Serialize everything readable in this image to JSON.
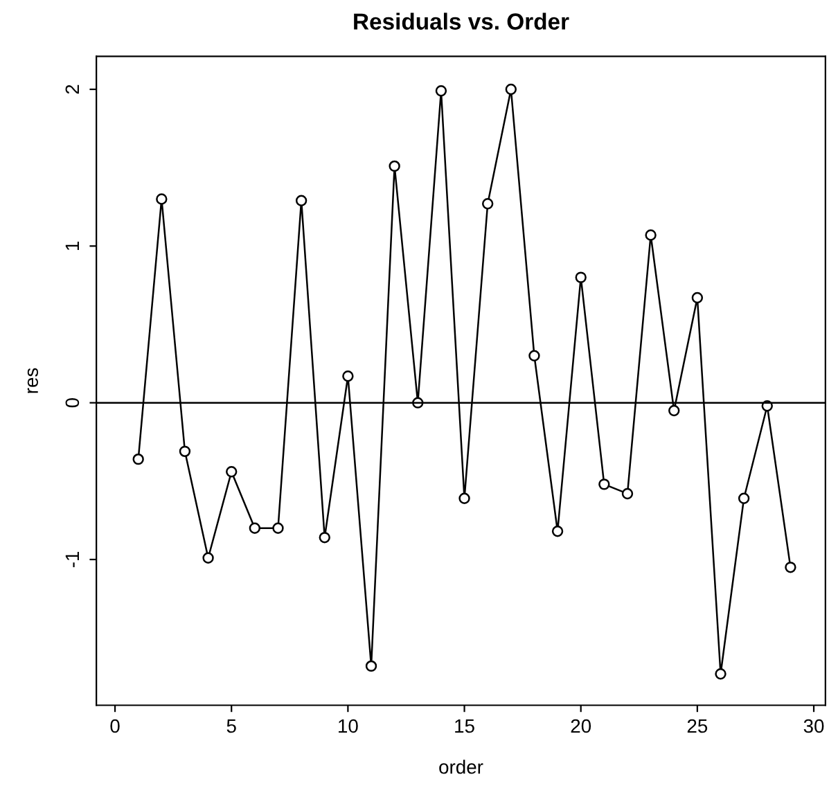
{
  "chart_data": {
    "type": "line",
    "title": "Residuals vs. Order",
    "xlabel": "order",
    "ylabel": "res",
    "x": [
      1,
      2,
      3,
      4,
      5,
      6,
      7,
      8,
      9,
      10,
      11,
      12,
      13,
      14,
      15,
      16,
      17,
      18,
      19,
      20,
      21,
      22,
      23,
      24,
      25,
      26,
      27,
      28,
      29
    ],
    "series": [
      {
        "color": "#000000",
        "values": [
          -0.36,
          1.3,
          -0.31,
          -0.99,
          -0.44,
          -0.8,
          -0.8,
          1.29,
          -0.86,
          0.17,
          -1.68,
          1.51,
          0.0,
          1.99,
          -0.61,
          1.27,
          2.0,
          0.3,
          -0.82,
          0.8,
          -0.52,
          -0.58,
          1.07,
          -0.05,
          0.67,
          -1.73,
          -0.61,
          -0.02,
          -1.05
        ]
      }
    ],
    "xlim": [
      -0.8,
      30.5
    ],
    "ylim": [
      -1.93,
      2.21
    ],
    "xticks": [
      0,
      5,
      10,
      15,
      20,
      25,
      30
    ],
    "yticks": [
      -1,
      0,
      1,
      2
    ],
    "ref_lines": [
      {
        "axis": "y",
        "value": 0,
        "color": "#000000"
      }
    ],
    "marker": "circle",
    "line_style": "solid",
    "grid": false,
    "legend": false
  }
}
